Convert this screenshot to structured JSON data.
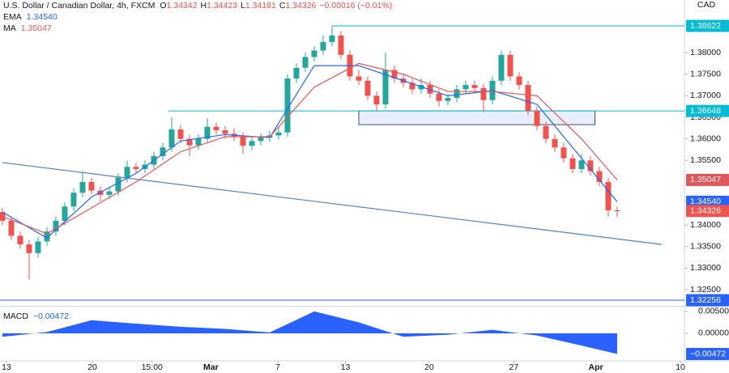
{
  "chart_data": {
    "type": "candlestick",
    "title": "U.S. Dollar / Canadian Dollar, 4h, FXCM",
    "currency": "CAD",
    "ohlc_prefix": [
      "O",
      "H",
      "L",
      "C"
    ],
    "change": "−0.00016 (−0.01%)",
    "open": [
      1.343,
      1.341,
      1.3375,
      1.3355,
      1.3335,
      1.3362,
      1.3385,
      1.341,
      1.3443,
      1.3475,
      1.35,
      1.348,
      1.347,
      1.3478,
      1.351,
      1.3535,
      1.353,
      1.354,
      1.356,
      1.358,
      1.3622,
      1.36,
      1.3585,
      1.36,
      1.3628,
      1.362,
      1.3612,
      1.3605,
      1.3584,
      1.3595,
      1.3603,
      1.3608,
      1.3615,
      1.374,
      1.3765,
      1.379,
      1.3805,
      1.3825,
      1.384,
      1.3795,
      1.3745,
      1.3735,
      1.37,
      1.368,
      1.376,
      1.374,
      1.373,
      1.3715,
      1.3725,
      1.3705,
      1.3688,
      1.3695,
      1.3715,
      1.3725,
      1.3718,
      1.369,
      1.3735,
      1.3795,
      1.3745,
      1.3725,
      1.3665,
      1.363,
      1.36,
      1.358,
      1.3555,
      1.353,
      1.355,
      1.3525,
      1.35,
      1.34342
    ],
    "high": [
      1.344,
      1.342,
      1.3385,
      1.3365,
      1.3372,
      1.3395,
      1.342,
      1.3453,
      1.3485,
      1.3525,
      1.351,
      1.349,
      1.3488,
      1.352,
      1.355,
      1.3545,
      1.355,
      1.357,
      1.359,
      1.365,
      1.3632,
      1.361,
      1.361,
      1.3648,
      1.3638,
      1.363,
      1.3625,
      1.3615,
      1.3605,
      1.3613,
      1.3618,
      1.363,
      1.375,
      1.3775,
      1.38,
      1.3815,
      1.384,
      1.3862,
      1.385,
      1.3805,
      1.376,
      1.3745,
      1.371,
      1.38,
      1.377,
      1.375,
      1.374,
      1.374,
      1.3735,
      1.3715,
      1.3705,
      1.3725,
      1.3735,
      1.3735,
      1.3728,
      1.3745,
      1.3805,
      1.3805,
      1.3755,
      1.3735,
      1.3675,
      1.364,
      1.361,
      1.359,
      1.3565,
      1.3565,
      1.356,
      1.3535,
      1.351,
      1.34423
    ],
    "low": [
      1.34,
      1.3365,
      1.3345,
      1.3274,
      1.3325,
      1.3352,
      1.3375,
      1.34,
      1.3433,
      1.3465,
      1.347,
      1.3455,
      1.346,
      1.3468,
      1.35,
      1.352,
      1.352,
      1.353,
      1.355,
      1.357,
      1.359,
      1.356,
      1.3575,
      1.359,
      1.361,
      1.36,
      1.3595,
      1.3565,
      1.3574,
      1.3585,
      1.3593,
      1.3598,
      1.3605,
      1.373,
      1.3755,
      1.378,
      1.3795,
      1.3815,
      1.3785,
      1.3735,
      1.3725,
      1.369,
      1.3665,
      1.367,
      1.373,
      1.372,
      1.3705,
      1.3705,
      1.3695,
      1.3675,
      1.3678,
      1.3685,
      1.3705,
      1.3708,
      1.3662,
      1.368,
      1.3725,
      1.3735,
      1.3715,
      1.3655,
      1.362,
      1.359,
      1.357,
      1.3545,
      1.352,
      1.352,
      1.3515,
      1.349,
      1.342,
      1.34181
    ],
    "close": [
      1.341,
      1.3375,
      1.3355,
      1.3335,
      1.3362,
      1.3385,
      1.341,
      1.3443,
      1.3475,
      1.35,
      1.348,
      1.347,
      1.3478,
      1.351,
      1.3535,
      1.353,
      1.354,
      1.356,
      1.358,
      1.3622,
      1.36,
      1.3585,
      1.36,
      1.3628,
      1.362,
      1.3612,
      1.3605,
      1.3584,
      1.3595,
      1.3603,
      1.3608,
      1.3615,
      1.374,
      1.3765,
      1.379,
      1.3805,
      1.3825,
      1.384,
      1.3795,
      1.3745,
      1.3735,
      1.37,
      1.368,
      1.376,
      1.374,
      1.373,
      1.3715,
      1.3725,
      1.3705,
      1.3688,
      1.3695,
      1.3715,
      1.3725,
      1.3718,
      1.369,
      1.3735,
      1.3795,
      1.3745,
      1.3725,
      1.3665,
      1.363,
      1.36,
      1.358,
      1.3555,
      1.353,
      1.355,
      1.3525,
      1.35,
      1.34342,
      1.34326
    ],
    "up_color": "#26a69a",
    "down_color": "#ef5350",
    "xlim": [
      -0.27,
      76.55
    ],
    "xticks": [
      {
        "value": 0.45,
        "label": "13"
      },
      {
        "value": 10.1,
        "label": "20"
      },
      {
        "value": 16.8,
        "label": "15:00"
      },
      {
        "value": 23.4,
        "label": "Mar"
      },
      {
        "value": 30.9,
        "label": "7"
      },
      {
        "value": 38.5,
        "label": "13"
      },
      {
        "value": 47.9,
        "label": "20"
      },
      {
        "value": 57.4,
        "label": "27"
      },
      {
        "value": 66.6,
        "label": "Apr"
      },
      {
        "value": 76.1,
        "label": "10"
      }
    ],
    "ylim": [
      1.32125,
      1.39223
    ],
    "yticks": [
      {
        "value": 1.325,
        "label": "1.32500"
      },
      {
        "value": 1.33,
        "label": "1.33000"
      },
      {
        "value": 1.335,
        "label": "1.33500"
      },
      {
        "value": 1.34,
        "label": "1.34000"
      },
      {
        "value": 1.355,
        "label": "1.35500"
      },
      {
        "value": 1.36,
        "label": "1.36000"
      },
      {
        "value": 1.365,
        "label": "1.36500"
      },
      {
        "value": 1.37,
        "label": "1.37000"
      },
      {
        "value": 1.375,
        "label": "1.37500"
      },
      {
        "value": 1.38,
        "label": "1.38000"
      }
    ],
    "indicators": [
      {
        "name": "EMA",
        "color": "#2962ff",
        "x": [
          0,
          5,
          10,
          15,
          20,
          25,
          30,
          35,
          40,
          45,
          50,
          55,
          60,
          65,
          69
        ],
        "values": [
          1.343,
          1.337,
          1.3465,
          1.352,
          1.3595,
          1.361,
          1.3603,
          1.377,
          1.377,
          1.3735,
          1.37,
          1.3712,
          1.368,
          1.3555,
          1.3454
        ],
        "value_label": "1.34540"
      },
      {
        "name": "MA",
        "color": "#e0575b",
        "x": [
          0,
          5,
          10,
          15,
          20,
          25,
          30,
          35,
          40,
          45,
          50,
          55,
          60,
          65,
          69
        ],
        "values": [
          1.342,
          1.338,
          1.344,
          1.35,
          1.357,
          1.3605,
          1.3605,
          1.372,
          1.3775,
          1.375,
          1.371,
          1.371,
          1.37,
          1.36,
          1.35047
        ]
      }
    ],
    "levels": [
      {
        "value": 1.38622,
        "label": "1.38622",
        "start": 37,
        "color": "#00bcd4"
      },
      {
        "value": 1.36648,
        "label": "1.36648",
        "start": 18.6,
        "color": "#00bcd4"
      },
      {
        "value": 1.32256,
        "label": "1.32256",
        "start": -0.27,
        "color": "#2962ff"
      }
    ],
    "zone": {
      "x": [
        40,
        66.5
      ],
      "y": [
        1.3633,
        1.3665
      ]
    },
    "trendline": {
      "x": [
        0,
        74
      ],
      "y": [
        1.3545,
        1.3355
      ]
    },
    "macd": {
      "name": "MACD",
      "color": "#2962ff",
      "x": [
        0,
        5,
        10,
        15,
        20,
        25,
        30,
        35,
        40,
        45,
        50,
        55,
        60,
        65,
        69
      ],
      "values": [
        -0.0008,
        0.0003,
        0.003,
        0.0022,
        0.0015,
        0.001,
        0.0002,
        0.005,
        0.0025,
        -0.0008,
        -0.0003,
        0.0008,
        -0.0005,
        -0.0028,
        -0.00472
      ],
      "value_label": "−0.00472",
      "ylim": [
        -0.0061,
        0.0059
      ],
      "yticks": [
        {
          "value": 0.005,
          "label": "0.00500"
        },
        {
          "value": 0,
          "label": "0.00000"
        }
      ]
    }
  }
}
